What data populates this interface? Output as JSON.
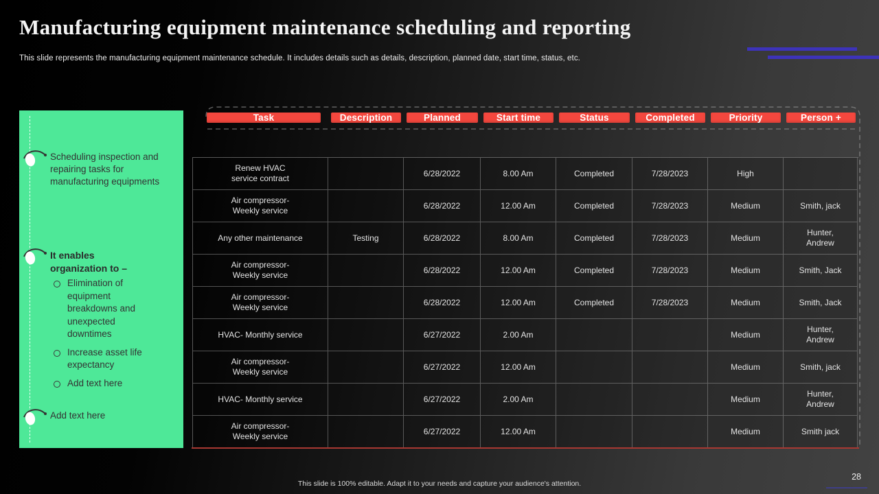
{
  "slide": {
    "title": "Manufacturing equipment maintenance scheduling and reporting",
    "subtitle": "This slide represents the manufacturing equipment maintenance schedule. It includes details such as details, description, planned date, start time, status, etc.",
    "footer_note": "This slide is 100% editable. Adapt it to your needs and capture your audience's attention.",
    "page_number": "28"
  },
  "colors": {
    "accent_green": "#4EE898",
    "accent_red": "#F4473E",
    "accent_purple": "#3D33B9",
    "table_bottom_line": "#A83832"
  },
  "left_panel": {
    "bullets": [
      {
        "text": "Scheduling inspection and\nrepairing tasks for\nmanufacturing equipments"
      },
      {
        "text": "It enables\norganization to –",
        "sub_items": [
          "Elimination of\nequipment\nbreakdowns and\nunexpected\ndowntimes",
          "Increase asset life\nexpectancy",
          "Add text here"
        ]
      },
      {
        "text": "Add text here"
      }
    ]
  },
  "table": {
    "headers": [
      "Task",
      "Description",
      "Planned",
      "Start time",
      "Status",
      "Completed",
      "Priority",
      "Person +"
    ],
    "rows": [
      [
        "Renew HVAC\nservice contract",
        "",
        "6/28/2022",
        "8.00 Am",
        "Completed",
        "7/28/2023",
        "High",
        ""
      ],
      [
        "Air compressor-\nWeekly service",
        "",
        "6/28/2022",
        "12.00 Am",
        "Completed",
        "7/28/2023",
        "Medium",
        "Smith, jack"
      ],
      [
        "Any other maintenance",
        "Testing",
        "6/28/2022",
        "8.00 Am",
        "Completed",
        "7/28/2023",
        "Medium",
        "Hunter,\nAndrew"
      ],
      [
        "Air compressor-\nWeekly service",
        "",
        "6/28/2022",
        "12.00 Am",
        "Completed",
        "7/28/2023",
        "Medium",
        "Smith, Jack"
      ],
      [
        "Air compressor-\nWeekly service",
        "",
        "6/28/2022",
        "12.00 Am",
        "Completed",
        "7/28/2023",
        "Medium",
        "Smith, Jack"
      ],
      [
        "HVAC- Monthly service",
        "",
        "6/27/2022",
        "2.00 Am",
        "",
        "",
        "Medium",
        "Hunter,\nAndrew"
      ],
      [
        "Air compressor-\nWeekly service",
        "",
        "6/27/2022",
        "12.00 Am",
        "",
        "",
        "Medium",
        "Smith, jack"
      ],
      [
        "HVAC- Monthly service",
        "",
        "6/27/2022",
        "2.00 Am",
        "",
        "",
        "Medium",
        "Hunter,\nAndrew"
      ],
      [
        "Air compressor-\nWeekly service",
        "",
        "6/27/2022",
        "12.00 Am",
        "",
        "",
        "Medium",
        "Smith jack"
      ]
    ]
  }
}
